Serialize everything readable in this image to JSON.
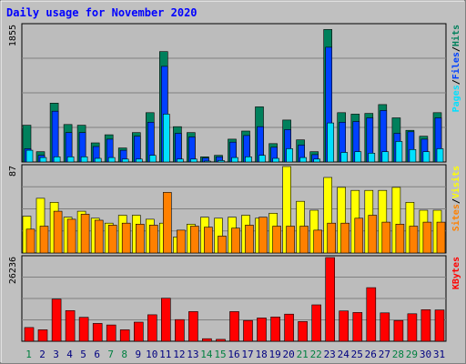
{
  "title": "Daily usage for November 2020",
  "colors": {
    "background": "#c0c0c0",
    "panel": "#bcbcbc",
    "title": "#0000ff",
    "hits": "#00805c",
    "files": "#0040ff",
    "pages": "#00e0ff",
    "visits": "#ffff00",
    "sites": "#ff8000",
    "kbytes": "#ff0000",
    "weekend": "#008040",
    "weekday": "#000080",
    "grid": "#808080"
  },
  "chart_data": [
    {
      "type": "bar",
      "panel": "hits-files-pages",
      "categories": [
        "1",
        "2",
        "3",
        "4",
        "5",
        "6",
        "7",
        "8",
        "9",
        "10",
        "11",
        "12",
        "13",
        "14",
        "15",
        "16",
        "17",
        "18",
        "19",
        "20",
        "21",
        "22",
        "23",
        "24",
        "25",
        "26",
        "27",
        "28",
        "29",
        "30",
        "31"
      ],
      "weekend_days": [
        "1",
        "7",
        "8",
        "14",
        "15",
        "21",
        "22",
        "28",
        "29"
      ],
      "ymax_label": "1855",
      "ylim": [
        0,
        1855
      ],
      "legend": [
        {
          "label": "Hits",
          "color": "#00805c"
        },
        {
          "label": "Files",
          "color": "#0040ff"
        },
        {
          "label": "Pages",
          "color": "#00e0ff"
        }
      ],
      "series": [
        {
          "name": "Hits",
          "values": [
            500,
            140,
            800,
            510,
            500,
            260,
            370,
            190,
            400,
            670,
            1500,
            480,
            400,
            70,
            90,
            310,
            420,
            750,
            250,
            570,
            300,
            140,
            1800,
            670,
            650,
            660,
            780,
            600,
            430,
            350,
            670
          ]
        },
        {
          "name": "Files",
          "values": [
            180,
            90,
            690,
            400,
            400,
            210,
            310,
            160,
            350,
            540,
            1300,
            390,
            340,
            55,
            70,
            270,
            360,
            480,
            200,
            440,
            230,
            100,
            1560,
            540,
            550,
            600,
            700,
            390,
            410,
            310,
            600
          ]
        },
        {
          "name": "Pages",
          "values": [
            160,
            60,
            70,
            70,
            70,
            50,
            60,
            40,
            40,
            90,
            650,
            40,
            40,
            10,
            20,
            60,
            70,
            90,
            50,
            180,
            60,
            40,
            530,
            130,
            140,
            120,
            140,
            280,
            170,
            140,
            180
          ]
        }
      ]
    },
    {
      "type": "bar",
      "panel": "visits-sites",
      "categories": [
        "1",
        "2",
        "3",
        "4",
        "5",
        "6",
        "7",
        "8",
        "9",
        "10",
        "11",
        "12",
        "13",
        "14",
        "15",
        "16",
        "17",
        "18",
        "19",
        "20",
        "21",
        "22",
        "23",
        "24",
        "25",
        "26",
        "27",
        "28",
        "29",
        "30",
        "31"
      ],
      "weekend_days": [
        "1",
        "7",
        "8",
        "14",
        "15",
        "21",
        "22",
        "28",
        "29"
      ],
      "ymax_label": "87",
      "ylim": [
        0,
        87
      ],
      "legend": [
        {
          "label": "Visits",
          "color": "#ffff00"
        },
        {
          "label": "Sites",
          "color": "#ff8000"
        }
      ],
      "series": [
        {
          "name": "Visits",
          "values": [
            37,
            55,
            51,
            36,
            42,
            35,
            30,
            38,
            38,
            34,
            30,
            16,
            29,
            36,
            35,
            36,
            38,
            35,
            40,
            87,
            52,
            43,
            76,
            66,
            63,
            63,
            63,
            66,
            51,
            43,
            43
          ]
        },
        {
          "name": "Sites",
          "values": [
            24,
            27,
            42,
            34,
            39,
            33,
            28,
            30,
            29,
            28,
            61,
            23,
            27,
            26,
            17,
            25,
            28,
            36,
            27,
            27,
            27,
            23,
            30,
            30,
            35,
            38,
            31,
            29,
            27,
            31,
            31
          ]
        }
      ]
    },
    {
      "type": "bar",
      "panel": "kbytes",
      "categories": [
        "1",
        "2",
        "3",
        "4",
        "5",
        "6",
        "7",
        "8",
        "9",
        "10",
        "11",
        "12",
        "13",
        "14",
        "15",
        "16",
        "17",
        "18",
        "19",
        "20",
        "21",
        "22",
        "23",
        "24",
        "25",
        "26",
        "27",
        "28",
        "29",
        "30",
        "31"
      ],
      "weekend_days": [
        "1",
        "7",
        "8",
        "14",
        "15",
        "21",
        "22",
        "28",
        "29"
      ],
      "ymax_label": "26236",
      "ylim": [
        0,
        26236
      ],
      "legend": [
        {
          "label": "KBytes",
          "color": "#ff0000"
        }
      ],
      "series": [
        {
          "name": "KBytes",
          "values": [
            4300,
            3600,
            13200,
            9600,
            7500,
            5600,
            5100,
            3600,
            6000,
            8300,
            13500,
            6800,
            9300,
            800,
            600,
            9300,
            6500,
            7300,
            7600,
            8500,
            6200,
            11400,
            26236,
            9500,
            9000,
            16800,
            8900,
            6500,
            8600,
            9900,
            9800
          ]
        }
      ]
    }
  ]
}
